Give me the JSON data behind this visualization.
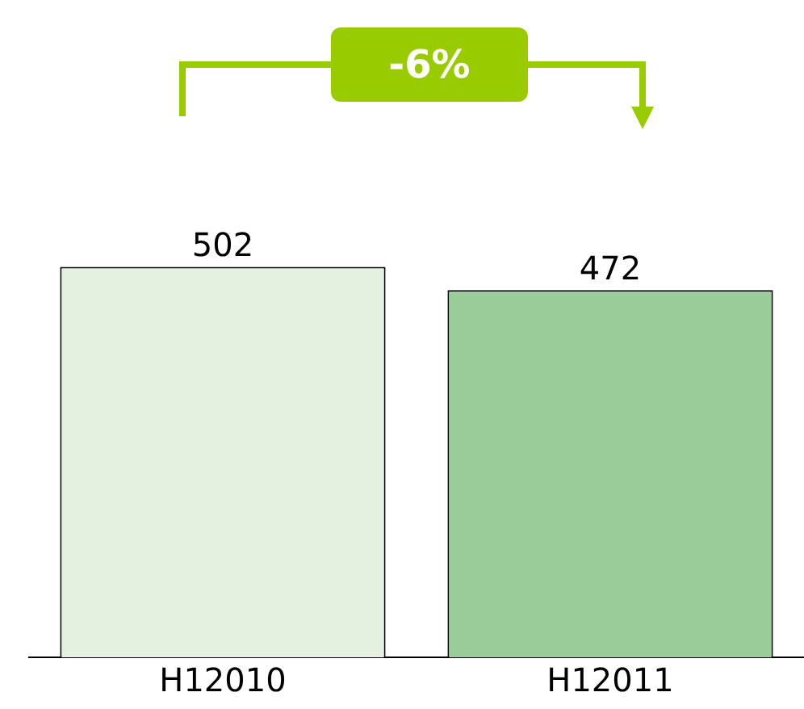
{
  "chart_data": {
    "type": "bar",
    "categories": [
      "H12010",
      "H12011"
    ],
    "values": [
      502,
      472
    ],
    "colors": [
      "#e4f1e0",
      "#99cc99"
    ],
    "data_labels": true,
    "grid": false,
    "legend": false,
    "tick_labels": "x",
    "annotations": [
      "-6%"
    ]
  }
}
